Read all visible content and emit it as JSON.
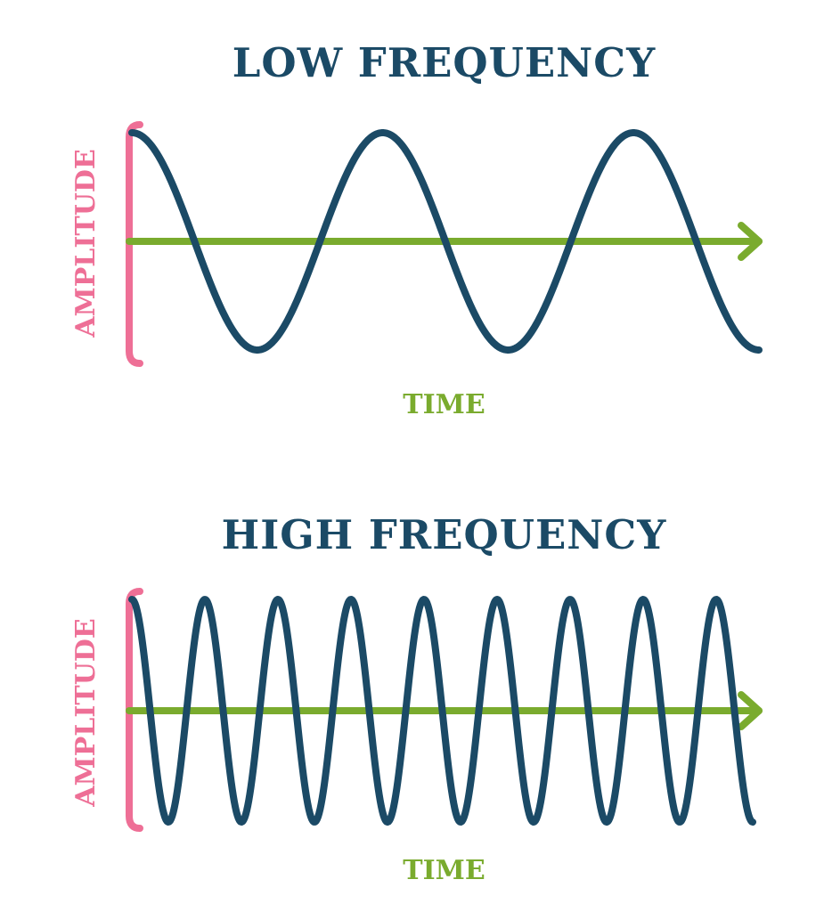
{
  "colors": {
    "title": "#1b4a66",
    "wave": "#1b4a66",
    "axis": "#7aab2e",
    "amplitude": "#ee6f96",
    "time_label": "#7aab2e"
  },
  "panels": [
    {
      "title": "LOW FREQUENCY",
      "amplitude_label": "AMPLITUDE",
      "time_label": "TIME",
      "cycles": 2.5
    },
    {
      "title": "HIGH FREQUENCY",
      "amplitude_label": "AMPLITUDE",
      "time_label": "TIME",
      "cycles": 8.5
    }
  ]
}
